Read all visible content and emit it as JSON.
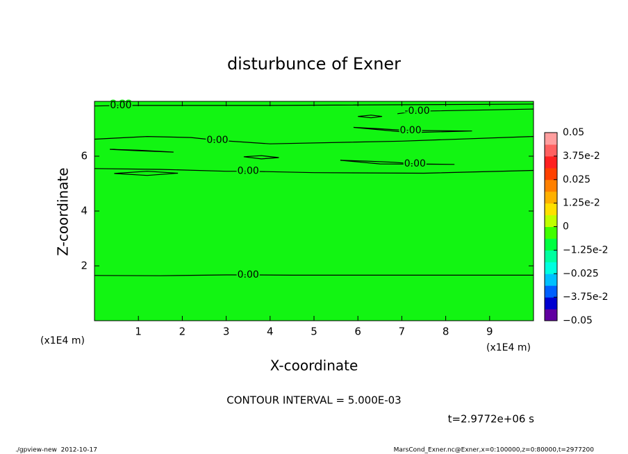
{
  "chart_data": {
    "type": "contour",
    "title": "disturbunce of Exner",
    "x_label": "X-coordinate",
    "y_label": "Z-coordinate",
    "x_unit": "(x1E4 m)",
    "x_unit_right": "(x1E4 m)",
    "xlim": [
      0,
      10
    ],
    "xticks": [
      1,
      2,
      3,
      4,
      5,
      6,
      7,
      8,
      9
    ],
    "ylim": [
      0,
      8
    ],
    "yticks": [
      2,
      4,
      6
    ],
    "fill_color": "#12f512",
    "line_color": "#000000",
    "contours": [
      {
        "label": "0.00",
        "x": [
          0,
          1.5,
          3,
          3.5,
          4.5,
          7,
          10
        ],
        "y": [
          1.65,
          1.64,
          1.67,
          1.67,
          1.66,
          1.66,
          1.66
        ]
      },
      {
        "label": "0.00",
        "x": [
          0,
          1.5,
          3,
          3.5,
          5,
          7.5,
          10
        ],
        "y": [
          5.55,
          5.52,
          5.45,
          5.45,
          5.4,
          5.38,
          5.48
        ]
      },
      {
        "label": "0.00",
        "x": [
          0,
          1.2,
          2.2,
          2.8,
          4,
          7,
          10
        ],
        "y": [
          6.62,
          6.72,
          6.68,
          6.58,
          6.45,
          6.55,
          6.72
        ]
      },
      {
        "label": "0.00",
        "x": [
          5.6,
          6.2,
          6.8,
          7.3,
          8.2,
          6.5,
          5.6
        ],
        "y": [
          5.85,
          5.82,
          5.78,
          5.72,
          5.7,
          5.72,
          5.85
        ]
      },
      {
        "label": "0.00",
        "x": [
          5.9,
          6.5,
          6.9,
          7.2,
          8.6,
          7.2,
          5.9
        ],
        "y": [
          7.05,
          7.0,
          6.96,
          6.94,
          6.92,
          6.86,
          7.05
        ]
      },
      {
        "label": "-0.00",
        "x": [
          6.9,
          7.35,
          10
        ],
        "y": [
          7.55,
          7.64,
          7.72
        ]
      },
      {
        "label": "0.00",
        "x": [
          0,
          0.3,
          0.6,
          4,
          10
        ],
        "y": [
          7.83,
          7.84,
          7.85,
          7.85,
          7.9
        ]
      },
      {
        "x": [
          0.35,
          1,
          1.8,
          1,
          0.35
        ],
        "y": [
          6.25,
          6.2,
          6.15,
          6.22,
          6.25
        ]
      },
      {
        "x": [
          3.4,
          3.8,
          4.2,
          3.8,
          3.4
        ],
        "y": [
          5.98,
          6.02,
          5.95,
          5.9,
          5.98
        ]
      },
      {
        "x": [
          0.45,
          1.2,
          1.9,
          1.2,
          0.45
        ],
        "y": [
          5.37,
          5.45,
          5.38,
          5.3,
          5.37
        ]
      },
      {
        "x": [
          6,
          6.3,
          6.55,
          6.3,
          6
        ],
        "y": [
          7.45,
          7.5,
          7.45,
          7.4,
          7.45
        ]
      }
    ],
    "colorbar_lim": [
      -0.05,
      0.05
    ],
    "colorbar_ticks": [
      0.05,
      {
        "value": 0.0375,
        "label": "3.75e-2"
      },
      0.025,
      {
        "value": 0.0125,
        "label": "1.25e-2"
      },
      0,
      {
        "value": -0.0125,
        "label": "−1.25e-2"
      },
      {
        "value": -0.025,
        "label": "−0.025"
      },
      {
        "value": -0.0375,
        "label": "−3.75e-2"
      },
      {
        "value": -0.05,
        "label": "−0.05"
      }
    ],
    "colorbar_colors": [
      "#6000a0",
      "#0000d0",
      "#0060ff",
      "#00c0ff",
      "#00ffe0",
      "#00ffa0",
      "#00ff40",
      "#40ff00",
      "#c0ff00",
      "#ffe000",
      "#ffb000",
      "#ff8000",
      "#ff4000",
      "#ff2020",
      "#ff6060",
      "#ff9e9e"
    ],
    "annotations": [
      "CONTOUR INTERVAL = 5.000E-03",
      "t=2.9772e+06 s"
    ],
    "footer_left": "./gpview-new  2012-10-17",
    "footer_right": "MarsCond_Exner.nc@Exner,x=0:100000,z=0:80000,t=2977200"
  }
}
